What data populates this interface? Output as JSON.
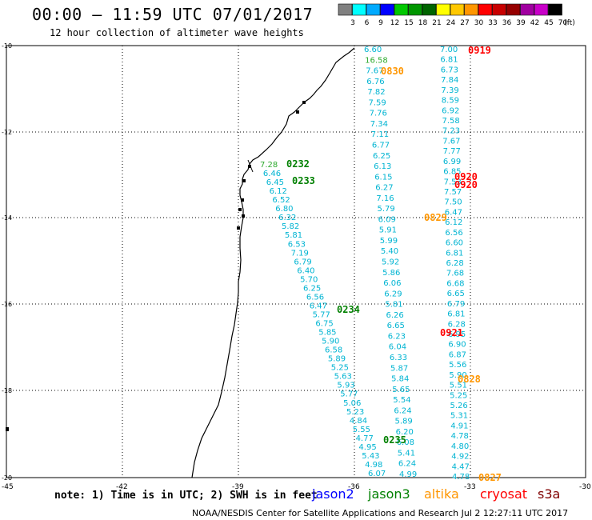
{
  "header": {
    "title": "00:00 – 11:59 UTC 07/01/2017",
    "subtitle": "12 hour collection of altimeter wave heights"
  },
  "legend": {
    "unit": "(ft)",
    "bins": [
      {
        "label": "3",
        "color": "#808080"
      },
      {
        "label": "6",
        "color": "#00ffff"
      },
      {
        "label": "9",
        "color": "#00aaff"
      },
      {
        "label": "12",
        "color": "#0000ff"
      },
      {
        "label": "15",
        "color": "#00c800"
      },
      {
        "label": "18",
        "color": "#009600"
      },
      {
        "label": "21",
        "color": "#006400"
      },
      {
        "label": "24",
        "color": "#ffff00"
      },
      {
        "label": "27",
        "color": "#ffc800"
      },
      {
        "label": "30",
        "color": "#ff9600"
      },
      {
        "label": "33",
        "color": "#ff0000"
      },
      {
        "label": "36",
        "color": "#c80000"
      },
      {
        "label": "39",
        "color": "#960000"
      },
      {
        "label": "42",
        "color": "#a000a0"
      },
      {
        "label": "45",
        "color": "#c800c8"
      },
      {
        "label": "70",
        "color": "#000000"
      }
    ]
  },
  "axes": {
    "lat_labels": [
      "-10",
      "-12",
      "-14",
      "-16",
      "-18",
      "-20"
    ],
    "lon_labels": [
      "-45",
      "-42",
      "-39",
      "-36",
      "-33",
      "-30"
    ]
  },
  "colors": {
    "jason2": "#0000ff",
    "jason3": "#008000",
    "altika": "#ff9600",
    "cryosat": "#ff0000",
    "s3a": "#800000",
    "wave": "#00b4d2",
    "wave_green": "#2eaa2e"
  },
  "passes": [
    {
      "label": "0232",
      "color": "#008000"
    },
    {
      "label": "0233",
      "color": "#008000"
    },
    {
      "label": "0234",
      "color": "#008000"
    },
    {
      "label": "0235",
      "color": "#008000"
    },
    {
      "label": "0830",
      "color": "#ff9600"
    },
    {
      "label": "0829",
      "color": "#ff9600"
    },
    {
      "label": "0828",
      "color": "#ff9600"
    },
    {
      "label": "0827",
      "color": "#ff9600"
    },
    {
      "label": "0919",
      "color": "#ff0000"
    },
    {
      "label": "0920",
      "color": "#ff0000"
    },
    {
      "label": "0920",
      "color": "#ff0000"
    },
    {
      "label": "0921",
      "color": "#ff0000"
    }
  ],
  "tracks": {
    "jason3_west": [
      "7.28",
      "6.46",
      "6.45",
      "6.12",
      "6.52",
      "6.80",
      "6.32",
      "5.82",
      "5.81",
      "6.53",
      "7.19",
      "6.79",
      "6.40",
      "5.70",
      "6.25",
      "6.56",
      "6.47",
      "5.77",
      "6.75",
      "5.85",
      "5.90",
      "6.58",
      "5.89",
      "5.25",
      "5.63",
      "5.93",
      "5.77",
      "5.06",
      "5.23",
      "4.84",
      "5.55",
      "4.77",
      "4.95",
      "5.43",
      "4.98",
      "6.07"
    ],
    "altika_north": [
      "6.60",
      "16.58",
      "7.67",
      "6.76",
      "7.82",
      "7.59",
      "7.76",
      "7.34",
      "7.11",
      "6.77",
      "6.25",
      "6.13",
      "6.15",
      "6.27",
      "7.16",
      "5.79",
      "6.09",
      "5.91",
      "5.99",
      "5.40",
      "5.92",
      "5.86",
      "6.06",
      "6.29",
      "5.81",
      "6.26",
      "6.65",
      "6.23",
      "6.04",
      "6.33",
      "5.87",
      "5.84",
      "5.65",
      "5.54",
      "6.24",
      "5.89",
      "6.20",
      "6.08",
      "5.41",
      "6.24",
      "4.99"
    ],
    "cryosat_east": [
      "7.00",
      "6.81",
      "6.73",
      "7.84",
      "7.39",
      "8.59",
      "6.92",
      "7.58",
      "7.23",
      "7.67",
      "7.77",
      "6.99",
      "6.85",
      "7.53",
      "7.57",
      "7.50",
      "6.47",
      "6.12",
      "6.56",
      "6.60",
      "6.81",
      "6.28",
      "7.68",
      "6.68",
      "6.65",
      "6.79",
      "6.81",
      "6.28",
      "6.95",
      "6.90",
      "6.87",
      "5.56",
      "5.90",
      "5.51",
      "5.25",
      "5.26",
      "5.31",
      "4.91",
      "4.78",
      "4.80",
      "4.92",
      "4.47",
      "4.78"
    ]
  },
  "footer": {
    "note": "note: 1) Time is in UTC; 2) SWH is in feet",
    "satellites": [
      "jason2",
      "jason3",
      "altika",
      "cryosat",
      "s3a"
    ],
    "credit": "NOAA/NESDIS Center for Satellite Applications and Research    Jul  2 12:27:11 UTC 2017"
  }
}
